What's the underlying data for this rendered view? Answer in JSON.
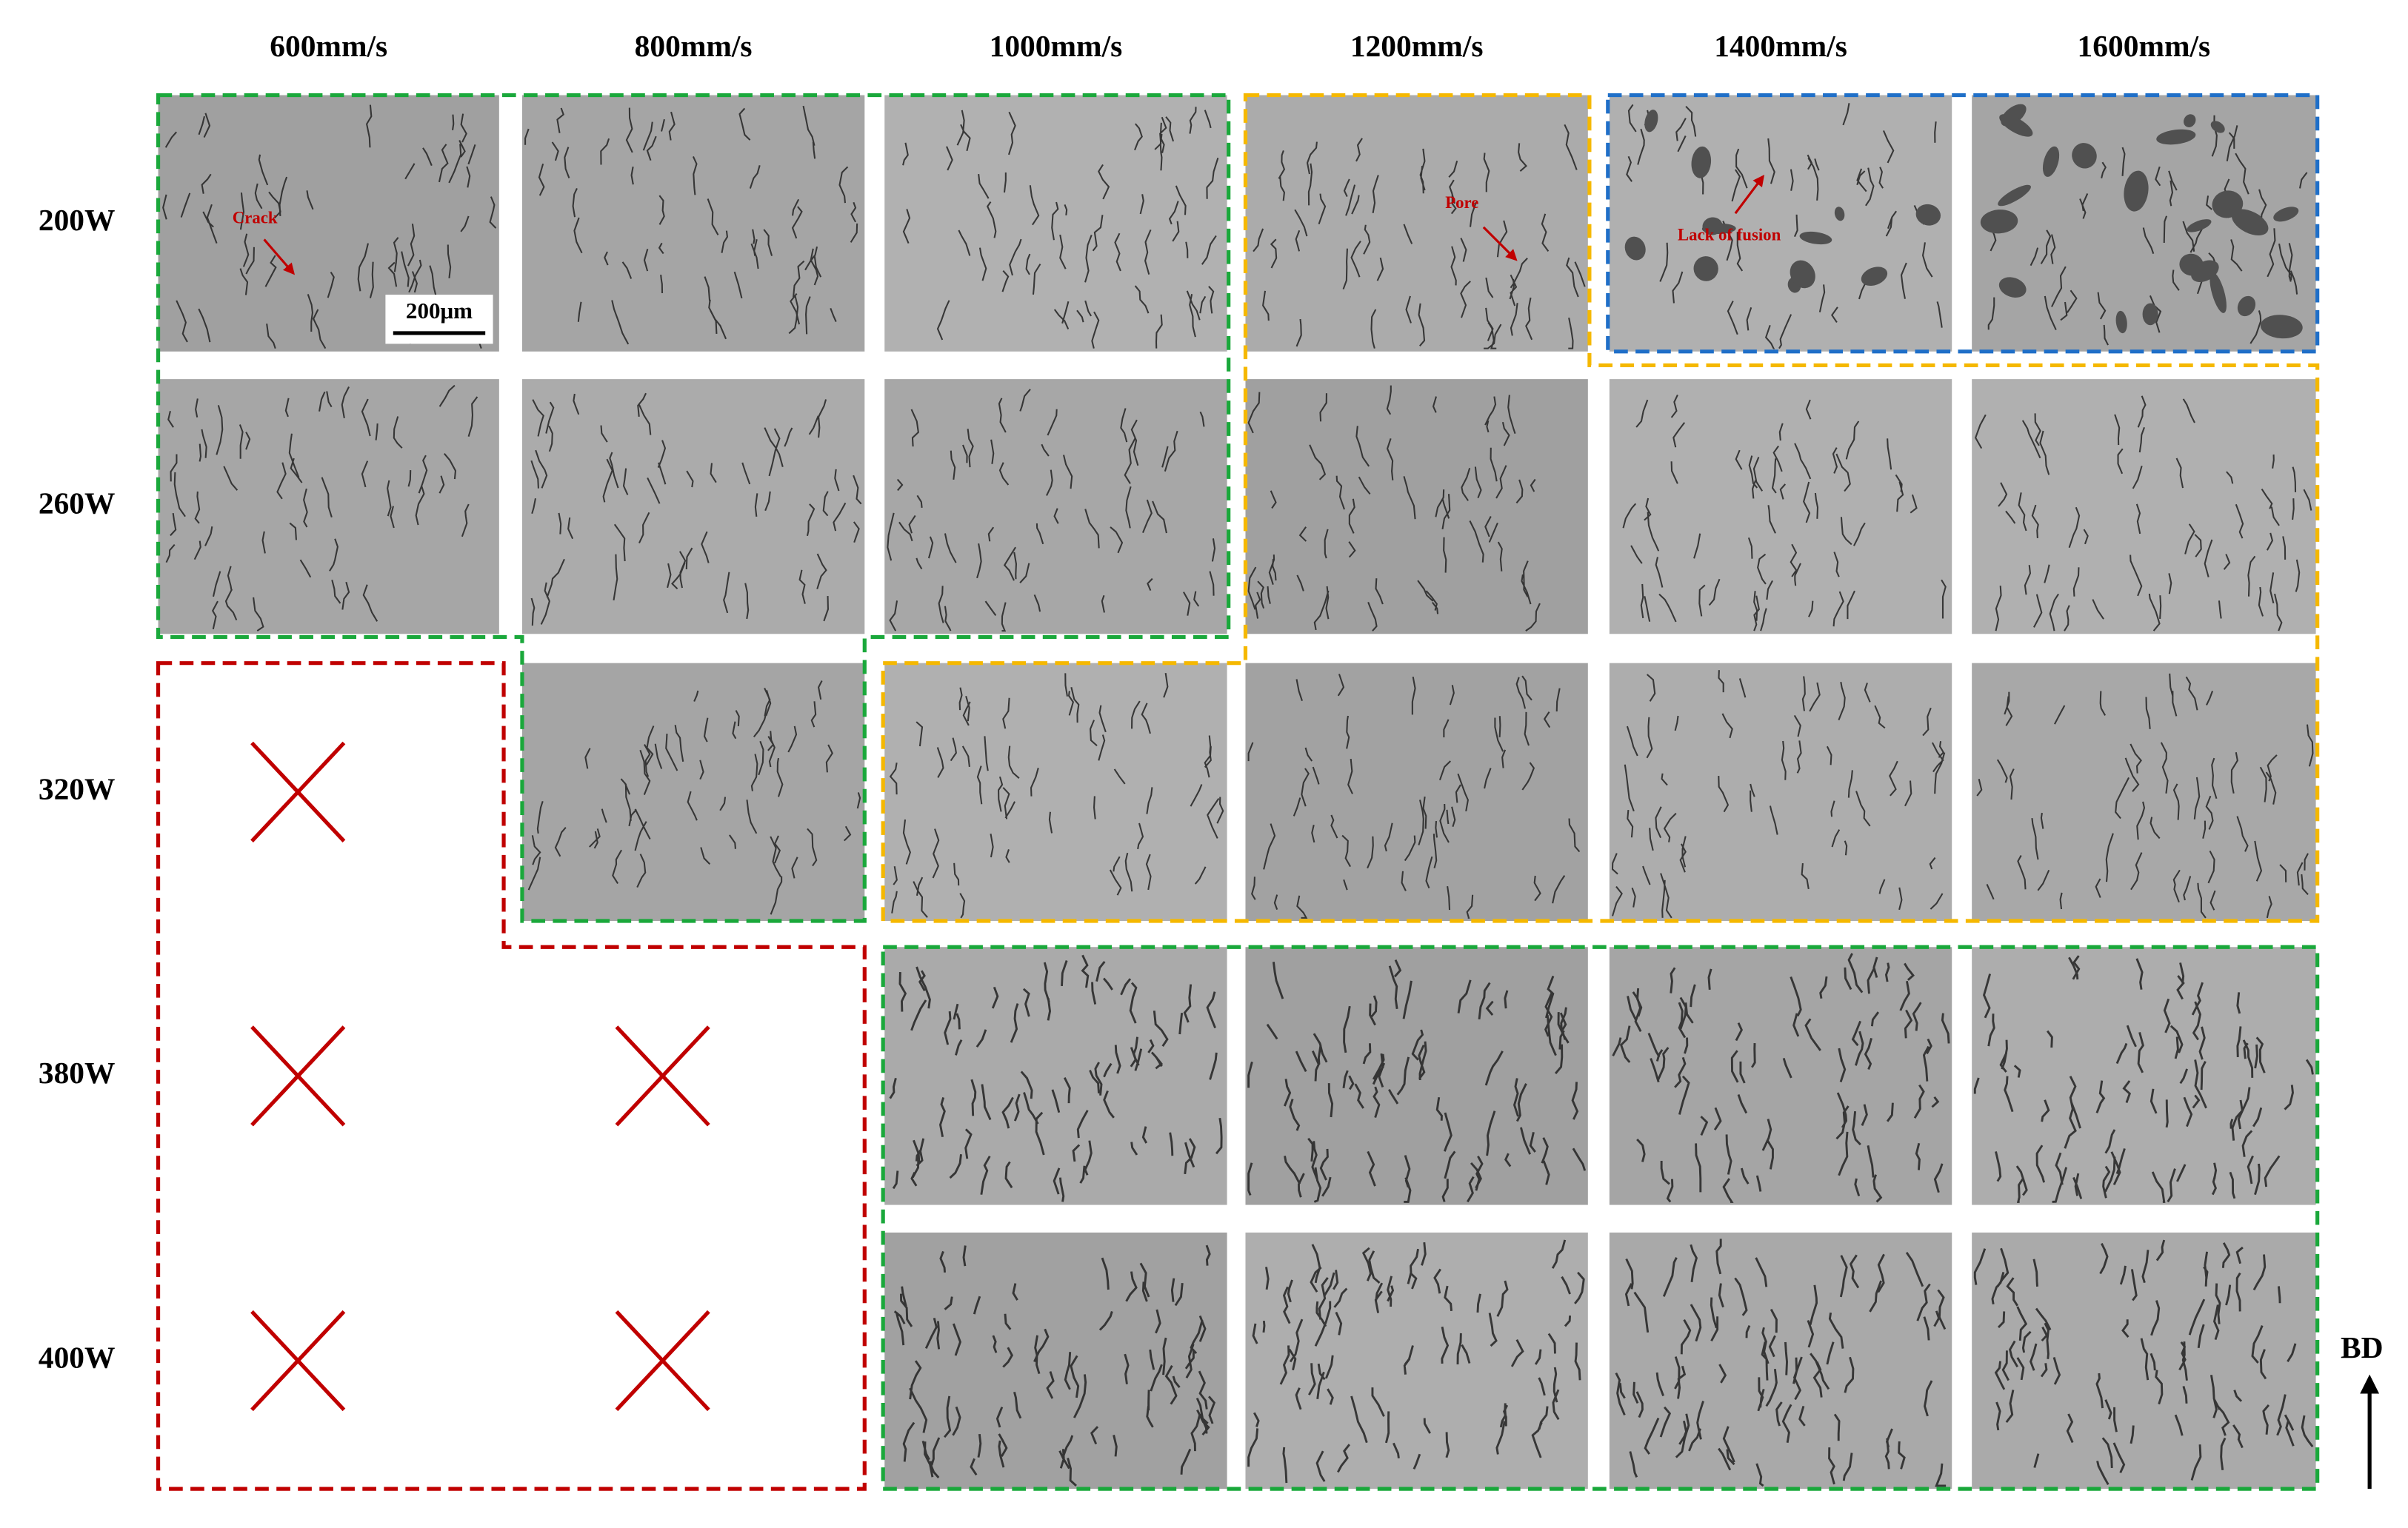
{
  "column_headers": [
    "600mm/s",
    "800mm/s",
    "1000mm/s",
    "1200mm/s",
    "1400mm/s",
    "1600mm/s"
  ],
  "row_labels": [
    "200W",
    "260W",
    "320W",
    "380W",
    "400W"
  ],
  "annotations": {
    "crack": "Crack",
    "pore": "Pore",
    "lack_of_fusion": "Lack of fusion"
  },
  "scale_bar": "200μm",
  "direction_label": "BD"
}
